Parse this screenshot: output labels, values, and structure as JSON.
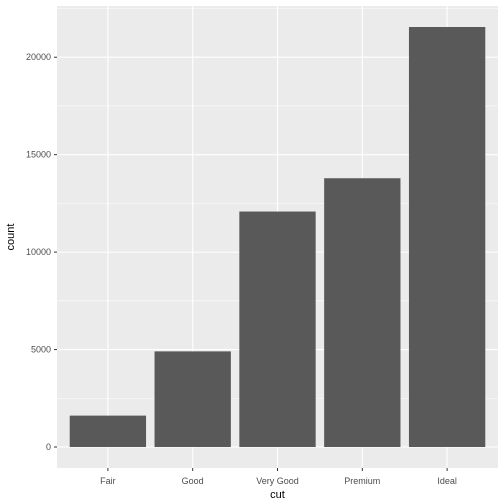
{
  "chart_data": {
    "type": "bar",
    "title": "",
    "xlabel": "cut",
    "ylabel": "count",
    "categories": [
      "Fair",
      "Good",
      "Very Good",
      "Premium",
      "Ideal"
    ],
    "values": [
      1610,
      4906,
      12082,
      13791,
      21551
    ],
    "ylim": [
      -1078,
      22629
    ],
    "yticks": [
      0,
      5000,
      10000,
      15000,
      20000
    ],
    "grid": true,
    "legend": "none",
    "colors": {
      "panel_background": "#ebebeb",
      "grid_major": "#ffffff",
      "bar_fill": "#595959",
      "tick_text": "#4d4d4d",
      "axis_title": "#000000"
    }
  }
}
